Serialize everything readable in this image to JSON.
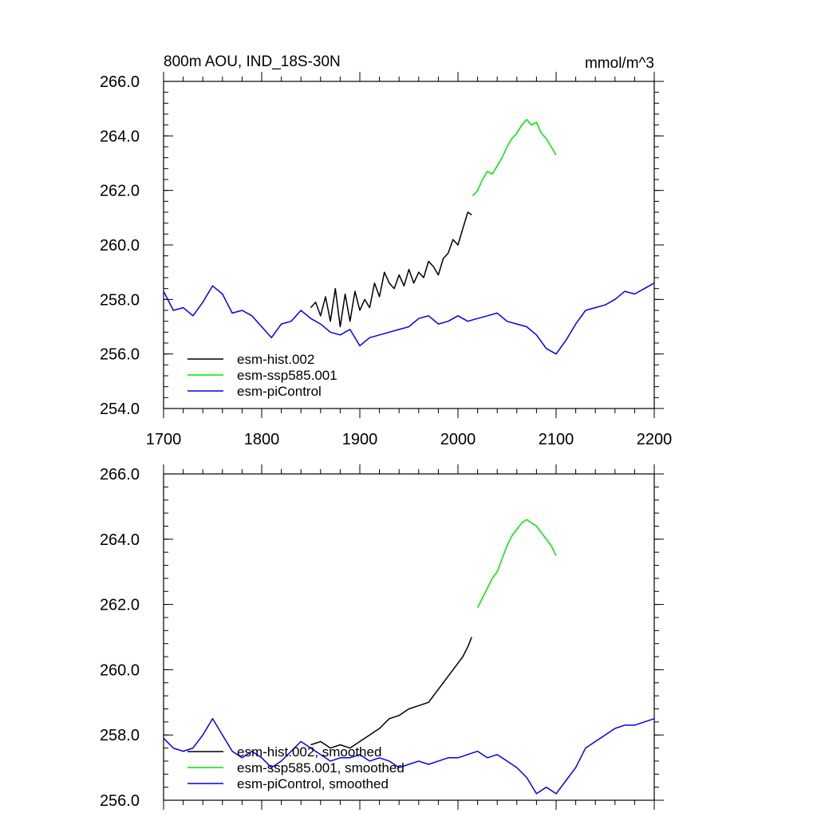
{
  "chart_data": [
    {
      "type": "line",
      "title": "800m AOU, IND_18S-30N",
      "units": "mmol/m^3",
      "xlim": [
        1700,
        2200
      ],
      "ylim": [
        254,
        266
      ],
      "x_ticks": [
        "1700",
        "1800",
        "1900",
        "2000",
        "2100",
        "2200"
      ],
      "y_ticks": [
        "254.0",
        "256.0",
        "258.0",
        "260.0",
        "262.0",
        "264.0",
        "266.0"
      ],
      "grid": false,
      "legend_position": "bottom-left",
      "series": [
        {
          "name": "esm-hist.002",
          "color": "#000000",
          "x": [
            1850,
            1855,
            1860,
            1865,
            1870,
            1875,
            1880,
            1885,
            1890,
            1895,
            1900,
            1905,
            1910,
            1915,
            1920,
            1925,
            1930,
            1935,
            1940,
            1945,
            1950,
            1955,
            1960,
            1965,
            1970,
            1975,
            1980,
            1985,
            1990,
            1995,
            2000,
            2005,
            2010,
            2014
          ],
          "y": [
            257.7,
            257.9,
            257.4,
            258.1,
            257.2,
            258.4,
            257.0,
            258.2,
            257.2,
            258.3,
            257.6,
            258.0,
            257.7,
            258.6,
            258.1,
            259.0,
            258.6,
            258.4,
            258.9,
            258.5,
            259.1,
            258.6,
            259.0,
            258.8,
            259.4,
            259.2,
            258.9,
            259.5,
            259.7,
            260.2,
            260.0,
            260.6,
            261.2,
            261.1
          ]
        },
        {
          "name": "esm-ssp585.001",
          "color": "#00e600",
          "x": [
            2015,
            2020,
            2025,
            2030,
            2035,
            2040,
            2045,
            2050,
            2055,
            2060,
            2065,
            2070,
            2075,
            2080,
            2085,
            2090,
            2095,
            2100
          ],
          "y": [
            261.8,
            262.0,
            262.4,
            262.7,
            262.6,
            262.9,
            263.2,
            263.6,
            263.9,
            264.1,
            264.4,
            264.6,
            264.4,
            264.5,
            264.1,
            263.9,
            263.6,
            263.3
          ]
        },
        {
          "name": "esm-piControl",
          "color": "#0000ee",
          "x": [
            1700,
            1710,
            1720,
            1730,
            1740,
            1750,
            1760,
            1770,
            1780,
            1790,
            1800,
            1810,
            1820,
            1830,
            1840,
            1850,
            1860,
            1870,
            1880,
            1890,
            1900,
            1910,
            1920,
            1930,
            1940,
            1950,
            1960,
            1970,
            1980,
            1990,
            2000,
            2010,
            2020,
            2030,
            2040,
            2050,
            2060,
            2070,
            2080,
            2090,
            2100,
            2110,
            2120,
            2130,
            2140,
            2150,
            2160,
            2170,
            2180,
            2190,
            2200
          ],
          "y": [
            258.3,
            257.6,
            257.7,
            257.4,
            257.9,
            258.5,
            258.2,
            257.5,
            257.6,
            257.4,
            257.0,
            256.6,
            257.1,
            257.2,
            257.6,
            257.3,
            257.1,
            256.8,
            256.7,
            256.9,
            256.3,
            256.6,
            256.7,
            256.8,
            256.9,
            257.0,
            257.3,
            257.4,
            257.1,
            257.2,
            257.4,
            257.2,
            257.3,
            257.4,
            257.5,
            257.2,
            257.1,
            257.0,
            256.7,
            256.2,
            256.0,
            256.5,
            257.1,
            257.6,
            257.7,
            257.8,
            258.0,
            258.3,
            258.2,
            258.4,
            258.6
          ]
        }
      ]
    },
    {
      "type": "line",
      "title": "",
      "xlim": [
        1700,
        2200
      ],
      "ylim": [
        256,
        266
      ],
      "y_ticks": [
        "256.0",
        "258.0",
        "260.0",
        "262.0",
        "264.0",
        "266.0"
      ],
      "grid": false,
      "legend_position": "bottom-left",
      "series": [
        {
          "name": "esm-hist.002, smoothed",
          "color": "#000000",
          "x": [
            1850,
            1860,
            1870,
            1880,
            1890,
            1900,
            1910,
            1920,
            1930,
            1940,
            1950,
            1960,
            1970,
            1980,
            1990,
            2000,
            2005,
            2010,
            2014
          ],
          "y": [
            257.7,
            257.8,
            257.6,
            257.7,
            257.6,
            257.8,
            258.0,
            258.2,
            258.5,
            258.6,
            258.8,
            258.9,
            259.0,
            259.4,
            259.8,
            260.2,
            260.4,
            260.7,
            261.0
          ]
        },
        {
          "name": "esm-ssp585.001, smoothed",
          "color": "#00e600",
          "x": [
            2020,
            2025,
            2030,
            2035,
            2040,
            2045,
            2050,
            2055,
            2060,
            2065,
            2070,
            2075,
            2080,
            2085,
            2090,
            2095,
            2100
          ],
          "y": [
            261.9,
            262.2,
            262.5,
            262.8,
            263.0,
            263.4,
            263.8,
            264.1,
            264.3,
            264.5,
            264.6,
            264.5,
            264.4,
            264.2,
            264.0,
            263.8,
            263.5
          ]
        },
        {
          "name": "esm-piControl, smoothed",
          "color": "#0000ee",
          "x": [
            1700,
            1710,
            1720,
            1730,
            1740,
            1750,
            1760,
            1770,
            1780,
            1790,
            1800,
            1810,
            1820,
            1830,
            1840,
            1850,
            1860,
            1870,
            1880,
            1890,
            1900,
            1910,
            1920,
            1930,
            1940,
            1950,
            1960,
            1970,
            1980,
            1990,
            2000,
            2010,
            2020,
            2030,
            2040,
            2050,
            2060,
            2070,
            2080,
            2090,
            2100,
            2110,
            2120,
            2130,
            2140,
            2150,
            2160,
            2170,
            2180,
            2190,
            2200
          ],
          "y": [
            257.9,
            257.6,
            257.5,
            257.6,
            258.0,
            258.5,
            258.0,
            257.5,
            257.3,
            257.5,
            257.3,
            257.0,
            257.2,
            257.5,
            257.8,
            257.6,
            257.4,
            257.2,
            257.3,
            257.3,
            257.4,
            257.2,
            257.3,
            257.2,
            257.0,
            257.1,
            257.2,
            257.1,
            257.2,
            257.3,
            257.3,
            257.4,
            257.5,
            257.3,
            257.4,
            257.2,
            257.0,
            256.7,
            256.2,
            256.4,
            256.2,
            256.6,
            257.0,
            257.6,
            257.8,
            258.0,
            258.2,
            258.3,
            258.3,
            258.4,
            258.5
          ]
        }
      ]
    }
  ]
}
